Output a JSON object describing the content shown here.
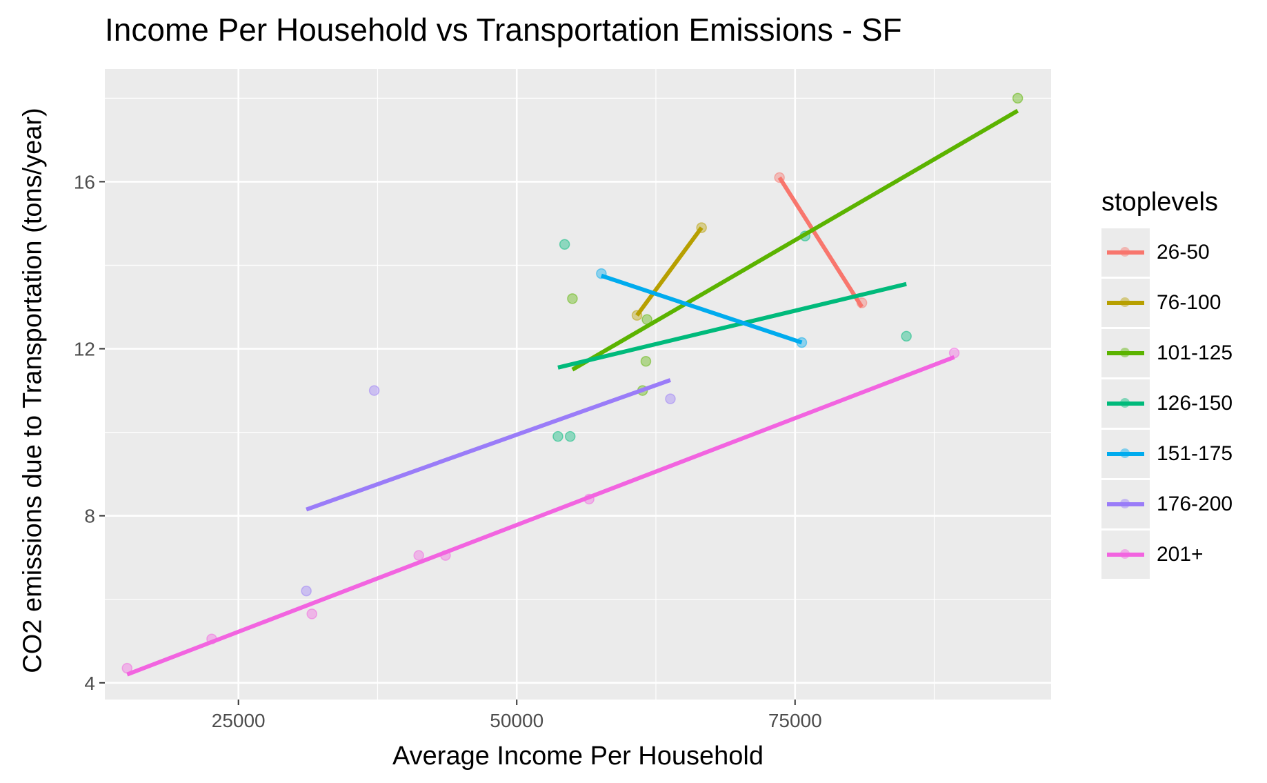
{
  "chart_data": {
    "type": "scatter",
    "title": "Income Per Household vs Transportation Emissions - SF",
    "xlabel": "Average Income Per Household",
    "ylabel": "CO2 emissions due to Transportation (tons/year)",
    "xlim": [
      13000,
      98000
    ],
    "ylim": [
      3.6,
      18.7
    ],
    "x_ticks": [
      25000,
      50000,
      75000
    ],
    "y_ticks": [
      4,
      8,
      12,
      16
    ],
    "grid": true,
    "legend_title": "stoplevels",
    "legend_position": "right",
    "series": [
      {
        "name": "26-50",
        "color": "#F8766D",
        "points": [
          [
            73600,
            16.1
          ],
          [
            81000,
            13.1
          ]
        ],
        "fit": [
          [
            73600,
            16.1
          ],
          [
            81000,
            13.0
          ]
        ]
      },
      {
        "name": "76-100",
        "color": "#B79F00",
        "points": [
          [
            60800,
            12.8
          ],
          [
            66600,
            14.9
          ]
        ],
        "fit": [
          [
            60800,
            12.8
          ],
          [
            66600,
            14.9
          ]
        ]
      },
      {
        "name": "101-125",
        "color": "#5BB300",
        "points": [
          [
            55000,
            13.2
          ],
          [
            61700,
            12.7
          ],
          [
            61600,
            11.7
          ],
          [
            61300,
            11.0
          ],
          [
            95000,
            18.0
          ]
        ],
        "fit": [
          [
            55000,
            11.5
          ],
          [
            95000,
            17.7
          ]
        ]
      },
      {
        "name": "126-150",
        "color": "#00BA7B",
        "points": [
          [
            54300,
            14.5
          ],
          [
            75900,
            14.7
          ],
          [
            85000,
            12.3
          ],
          [
            53700,
            9.9
          ],
          [
            54800,
            9.9
          ]
        ],
        "fit": [
          [
            53700,
            11.55
          ],
          [
            85000,
            13.55
          ]
        ]
      },
      {
        "name": "151-175",
        "color": "#00ABEE",
        "points": [
          [
            57600,
            13.8
          ],
          [
            75600,
            12.15
          ]
        ],
        "fit": [
          [
            57600,
            13.75
          ],
          [
            75600,
            12.15
          ]
        ]
      },
      {
        "name": "176-200",
        "color": "#9A7CF8",
        "points": [
          [
            37200,
            11.0
          ],
          [
            63800,
            10.8
          ],
          [
            31100,
            6.2
          ]
        ],
        "fit": [
          [
            31100,
            8.15
          ],
          [
            63800,
            11.25
          ]
        ]
      },
      {
        "name": "201+",
        "color": "#F264E0",
        "points": [
          [
            15000,
            4.35
          ],
          [
            22600,
            5.05
          ],
          [
            31600,
            5.65
          ],
          [
            41200,
            7.05
          ],
          [
            43600,
            7.05
          ],
          [
            56500,
            8.4
          ],
          [
            89300,
            11.9
          ]
        ],
        "fit": [
          [
            15000,
            4.2
          ],
          [
            89300,
            11.8
          ]
        ]
      }
    ]
  }
}
